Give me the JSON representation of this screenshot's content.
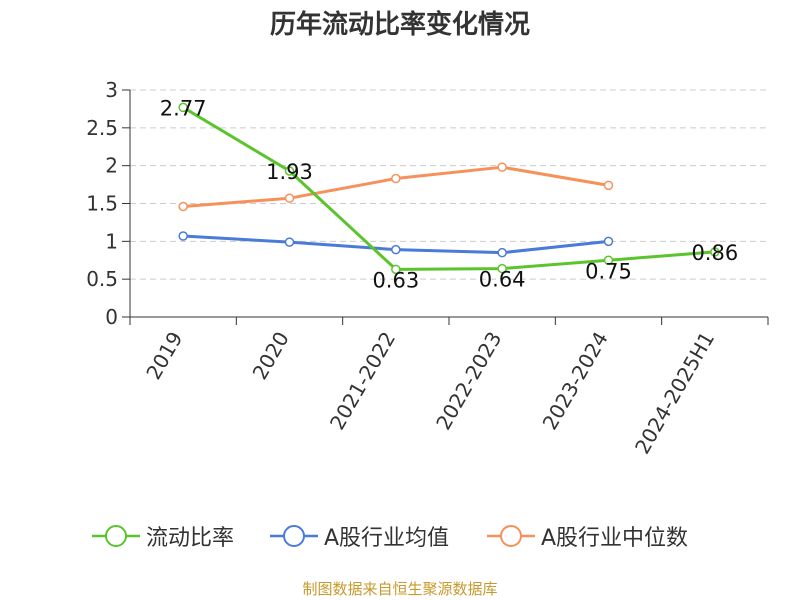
{
  "title": "历年流动比率变化情况",
  "source": "制图数据来自恒生聚源数据库",
  "chart_data": {
    "type": "line",
    "categories": [
      "2019",
      "2020",
      "2021-2022",
      "2022-2023",
      "2023-2024",
      "2024-2025H1"
    ],
    "ylim": [
      0,
      3
    ],
    "yticks": [
      "0",
      "0.5",
      "1",
      "1.5",
      "2",
      "2.5",
      "3"
    ],
    "grid": true,
    "legend_position": "bottom",
    "series": [
      {
        "name": "流动比率",
        "color": "#5bc42d",
        "values": [
          2.77,
          1.93,
          0.63,
          0.64,
          0.75,
          0.86
        ],
        "labels": [
          "2.77",
          "1.93",
          "0.63",
          "0.64",
          "0.75",
          "0.86"
        ]
      },
      {
        "name": "A股行业均值",
        "color": "#4a7bd8",
        "values": [
          1.07,
          0.99,
          0.89,
          0.85,
          1.0,
          null
        ]
      },
      {
        "name": "A股行业中位数",
        "color": "#f5915a",
        "values": [
          1.46,
          1.57,
          1.83,
          1.98,
          1.74,
          null
        ]
      }
    ]
  }
}
